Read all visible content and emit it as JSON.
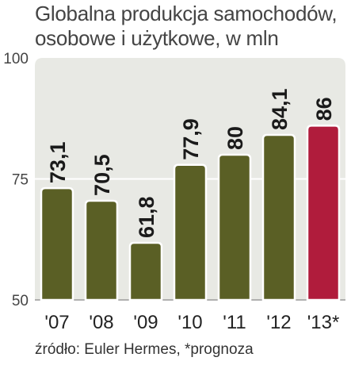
{
  "title": {
    "line1": "Globalna produkcja samochodów,",
    "line2": "osobowe i użytkowe, w mln"
  },
  "source_note": "źródło: Euler Hermes, *prognoza",
  "colors": {
    "bar_actual": "#5a5f25",
    "bar_forecast": "#b01c3c",
    "plot_bg": "#e8e9e4",
    "text": "#333333"
  },
  "chart_data": {
    "type": "bar",
    "title": "Globalna produkcja samochodów, osobowe i użytkowe, w mln",
    "xlabel": "",
    "ylabel": "",
    "categories": [
      "'07",
      "'08",
      "'09",
      "'10",
      "'11",
      "'12",
      "'13*"
    ],
    "values": [
      73.1,
      70.5,
      61.8,
      77.9,
      80,
      84.1,
      86
    ],
    "value_labels": [
      "73,1",
      "70,5",
      "61,8",
      "77,9",
      "80",
      "84,1",
      "86"
    ],
    "forecast": [
      false,
      false,
      false,
      false,
      false,
      false,
      true
    ],
    "ylim": [
      50,
      100
    ],
    "yticks": [
      50,
      75,
      100
    ],
    "grid": true,
    "legend": "none"
  }
}
